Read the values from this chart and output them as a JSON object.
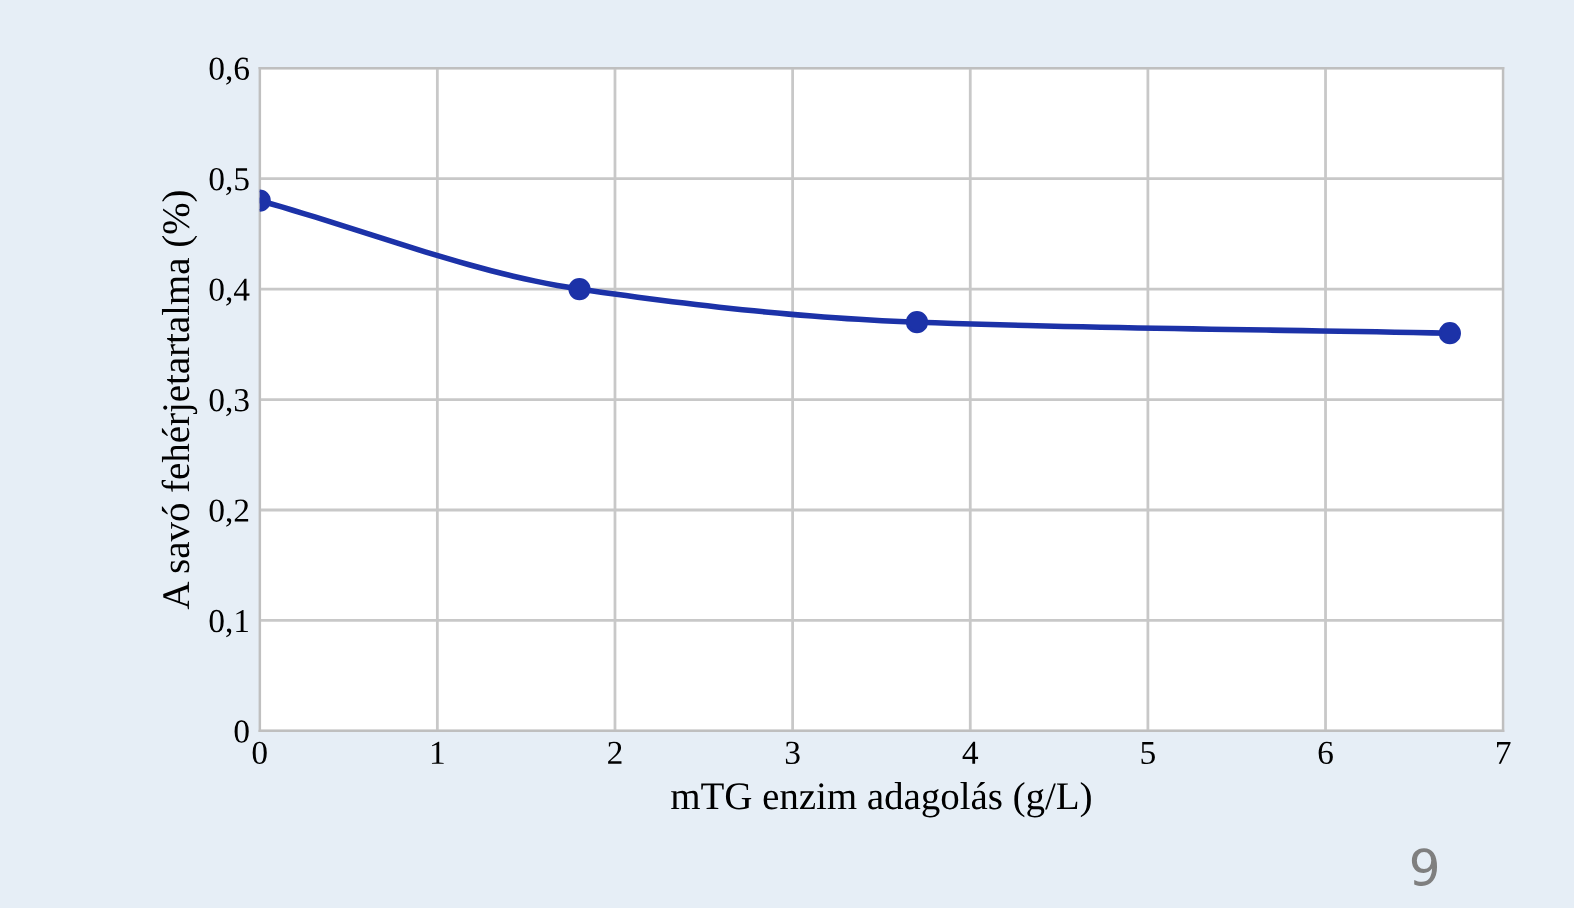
{
  "chart_data": {
    "type": "line",
    "xlabel": "mTG enzim adagolás (g/L)",
    "ylabel": "A savó fehérjetartalma (%)",
    "x": [
      0,
      1.8,
      3.7,
      6.7
    ],
    "series": [
      {
        "color": "#1c32a8",
        "values": [
          0.48,
          0.4,
          0.37,
          0.36
        ]
      }
    ],
    "xlim": [
      0,
      7
    ],
    "xticks": [
      0,
      1,
      2,
      3,
      4,
      5,
      6,
      7
    ],
    "ylim": [
      0,
      0.6
    ],
    "yticks": [
      {
        "value": 0,
        "label": "0"
      },
      {
        "value": 0.1,
        "label": "0,1"
      },
      {
        "value": 0.2,
        "label": "0,2"
      },
      {
        "value": 0.3,
        "label": "0,3"
      },
      {
        "value": 0.4,
        "label": "0,4"
      },
      {
        "value": 0.5,
        "label": "0,5"
      },
      {
        "value": 0.6,
        "label": "0,6"
      }
    ],
    "grid": true,
    "marker": "circle",
    "line_style": "solid",
    "legend": false,
    "annotations": [
      "9"
    ]
  }
}
